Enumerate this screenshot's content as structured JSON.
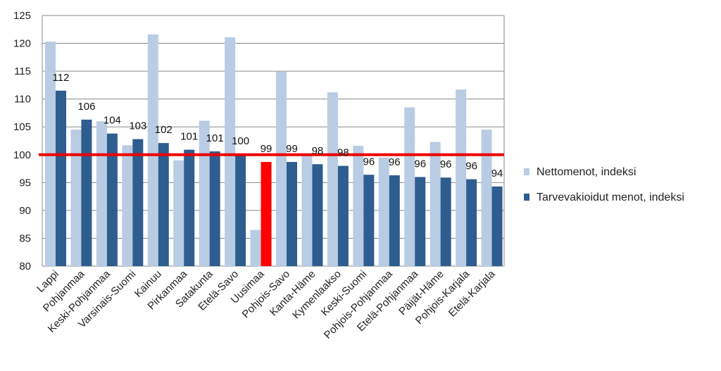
{
  "chart_data": {
    "type": "bar",
    "categories": [
      "Lappi",
      "Pohjanmaa",
      "Keski-Pohjanmaa",
      "Varsinais-Suomi",
      "Kainuu",
      "Pirkanmaa",
      "Satakunta",
      "Etelä-Savo",
      "Uusimaa",
      "Pohjois-Savo",
      "Kanta-Häme",
      "Kymenlaakso",
      "Keski-Suomi",
      "Pohjois-Pohjanmaa",
      "Etelä-Pohjanmaa",
      "Päijät-Häme",
      "Pohjois-Karjala",
      "Etelä-Karjala"
    ],
    "series": [
      {
        "name": "Nettomenot, indeksi",
        "color": "#b8cce4",
        "values": [
          120.3,
          104.5,
          106.0,
          101.7,
          121.6,
          99.0,
          106.1,
          121.1,
          86.5,
          114.9,
          99.8,
          111.2,
          101.6,
          99.5,
          108.5,
          102.3,
          111.7,
          104.5
        ]
      },
      {
        "name": "Tarvevakioidut menot, indeksi",
        "color": "#2e5d8f",
        "values": [
          111.5,
          106.3,
          103.8,
          102.8,
          102.1,
          100.9,
          100.6,
          100.1,
          98.7,
          98.7,
          98.3,
          98.0,
          96.4,
          96.3,
          96.0,
          95.9,
          95.6,
          94.3
        ]
      }
    ],
    "data_labels": [
      "112",
      "106",
      "104",
      "103",
      "102",
      "101",
      "101",
      "100",
      "99",
      "99",
      "98",
      "98",
      "96",
      "96",
      "96",
      "96",
      "96",
      "94"
    ],
    "highlight": {
      "category_index": 8,
      "series_index": 1,
      "color": "#ff0000"
    },
    "reference_line": {
      "value": 100,
      "color": "#ee0000"
    },
    "ylim": [
      80,
      125
    ],
    "yticks": [
      80,
      85,
      90,
      95,
      100,
      105,
      110,
      115,
      120,
      125
    ],
    "grid": true,
    "legend_position": "right",
    "title": "",
    "xlabel": "",
    "ylabel": ""
  }
}
